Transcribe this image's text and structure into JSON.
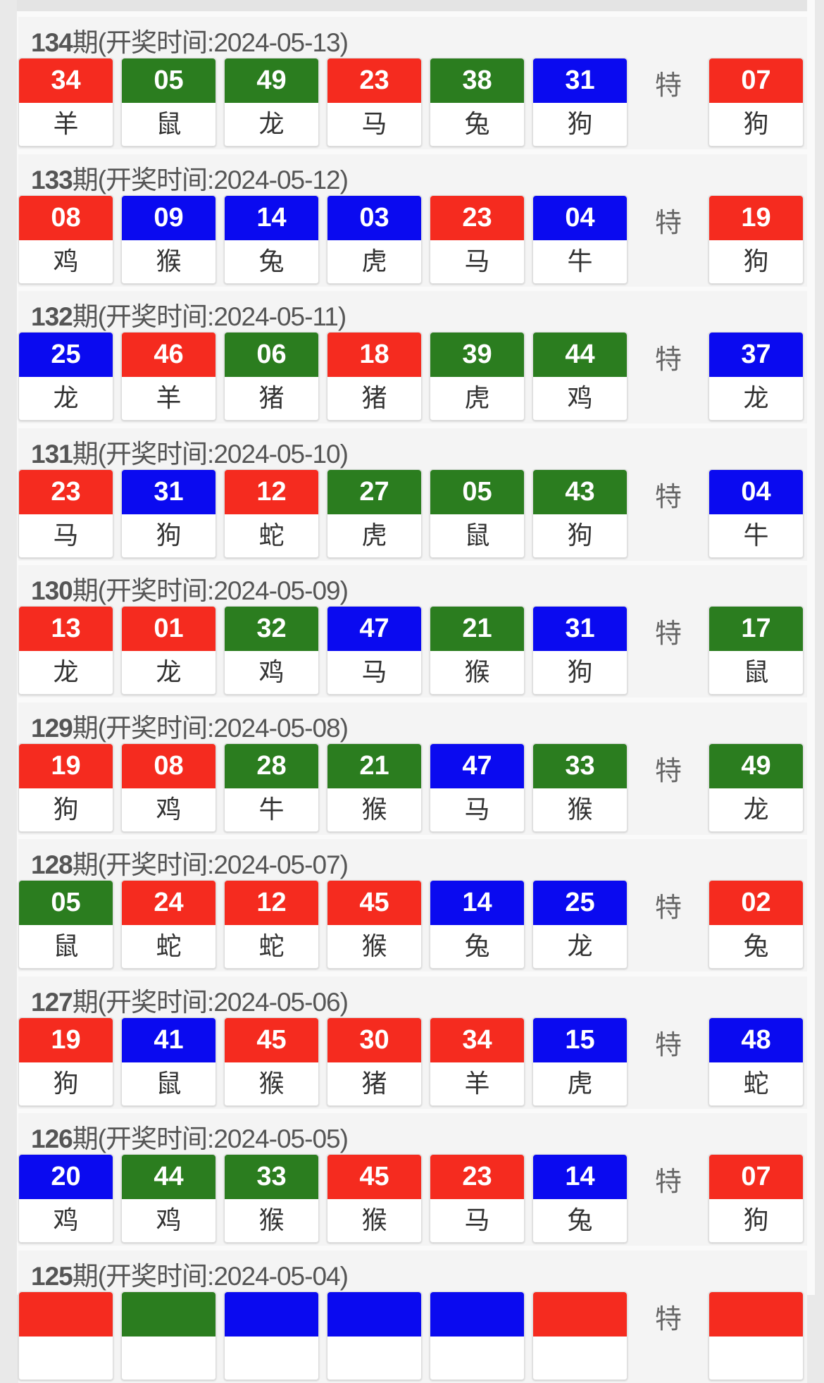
{
  "colors": {
    "red": "#f52b1f",
    "green": "#2b7d1f",
    "blue": "#0a0af0"
  },
  "special_label": "特",
  "draws": [
    {
      "period": "134",
      "label": "期(开奖时间:2024-05-13)",
      "balls": [
        [
          "34",
          "red",
          "羊"
        ],
        [
          "05",
          "green",
          "鼠"
        ],
        [
          "49",
          "green",
          "龙"
        ],
        [
          "23",
          "red",
          "马"
        ],
        [
          "38",
          "green",
          "兔"
        ],
        [
          "31",
          "blue",
          "狗"
        ]
      ],
      "special": [
        "07",
        "red",
        "狗"
      ]
    },
    {
      "period": "133",
      "label": "期(开奖时间:2024-05-12)",
      "balls": [
        [
          "08",
          "red",
          "鸡"
        ],
        [
          "09",
          "blue",
          "猴"
        ],
        [
          "14",
          "blue",
          "兔"
        ],
        [
          "03",
          "blue",
          "虎"
        ],
        [
          "23",
          "red",
          "马"
        ],
        [
          "04",
          "blue",
          "牛"
        ]
      ],
      "special": [
        "19",
        "red",
        "狗"
      ]
    },
    {
      "period": "132",
      "label": "期(开奖时间:2024-05-11)",
      "balls": [
        [
          "25",
          "blue",
          "龙"
        ],
        [
          "46",
          "red",
          "羊"
        ],
        [
          "06",
          "green",
          "猪"
        ],
        [
          "18",
          "red",
          "猪"
        ],
        [
          "39",
          "green",
          "虎"
        ],
        [
          "44",
          "green",
          "鸡"
        ]
      ],
      "special": [
        "37",
        "blue",
        "龙"
      ]
    },
    {
      "period": "131",
      "label": "期(开奖时间:2024-05-10)",
      "balls": [
        [
          "23",
          "red",
          "马"
        ],
        [
          "31",
          "blue",
          "狗"
        ],
        [
          "12",
          "red",
          "蛇"
        ],
        [
          "27",
          "green",
          "虎"
        ],
        [
          "05",
          "green",
          "鼠"
        ],
        [
          "43",
          "green",
          "狗"
        ]
      ],
      "special": [
        "04",
        "blue",
        "牛"
      ]
    },
    {
      "period": "130",
      "label": "期(开奖时间:2024-05-09)",
      "balls": [
        [
          "13",
          "red",
          "龙"
        ],
        [
          "01",
          "red",
          "龙"
        ],
        [
          "32",
          "green",
          "鸡"
        ],
        [
          "47",
          "blue",
          "马"
        ],
        [
          "21",
          "green",
          "猴"
        ],
        [
          "31",
          "blue",
          "狗"
        ]
      ],
      "special": [
        "17",
        "green",
        "鼠"
      ]
    },
    {
      "period": "129",
      "label": "期(开奖时间:2024-05-08)",
      "balls": [
        [
          "19",
          "red",
          "狗"
        ],
        [
          "08",
          "red",
          "鸡"
        ],
        [
          "28",
          "green",
          "牛"
        ],
        [
          "21",
          "green",
          "猴"
        ],
        [
          "47",
          "blue",
          "马"
        ],
        [
          "33",
          "green",
          "猴"
        ]
      ],
      "special": [
        "49",
        "green",
        "龙"
      ]
    },
    {
      "period": "128",
      "label": "期(开奖时间:2024-05-07)",
      "balls": [
        [
          "05",
          "green",
          "鼠"
        ],
        [
          "24",
          "red",
          "蛇"
        ],
        [
          "12",
          "red",
          "蛇"
        ],
        [
          "45",
          "red",
          "猴"
        ],
        [
          "14",
          "blue",
          "兔"
        ],
        [
          "25",
          "blue",
          "龙"
        ]
      ],
      "special": [
        "02",
        "red",
        "兔"
      ]
    },
    {
      "period": "127",
      "label": "期(开奖时间:2024-05-06)",
      "balls": [
        [
          "19",
          "red",
          "狗"
        ],
        [
          "41",
          "blue",
          "鼠"
        ],
        [
          "45",
          "red",
          "猴"
        ],
        [
          "30",
          "red",
          "猪"
        ],
        [
          "34",
          "red",
          "羊"
        ],
        [
          "15",
          "blue",
          "虎"
        ]
      ],
      "special": [
        "48",
        "blue",
        "蛇"
      ]
    },
    {
      "period": "126",
      "label": "期(开奖时间:2024-05-05)",
      "balls": [
        [
          "20",
          "blue",
          "鸡"
        ],
        [
          "44",
          "green",
          "鸡"
        ],
        [
          "33",
          "green",
          "猴"
        ],
        [
          "45",
          "red",
          "猴"
        ],
        [
          "23",
          "red",
          "马"
        ],
        [
          "14",
          "blue",
          "兔"
        ]
      ],
      "special": [
        "07",
        "red",
        "狗"
      ]
    },
    {
      "period": "125",
      "label": "期(开奖时间:2024-05-04)",
      "balls": [
        [
          "",
          "red",
          ""
        ],
        [
          "",
          "green",
          ""
        ],
        [
          "",
          "blue",
          ""
        ],
        [
          "",
          "blue",
          ""
        ],
        [
          "",
          "blue",
          ""
        ],
        [
          "",
          "red",
          ""
        ]
      ],
      "special": [
        "",
        "red",
        ""
      ]
    }
  ]
}
